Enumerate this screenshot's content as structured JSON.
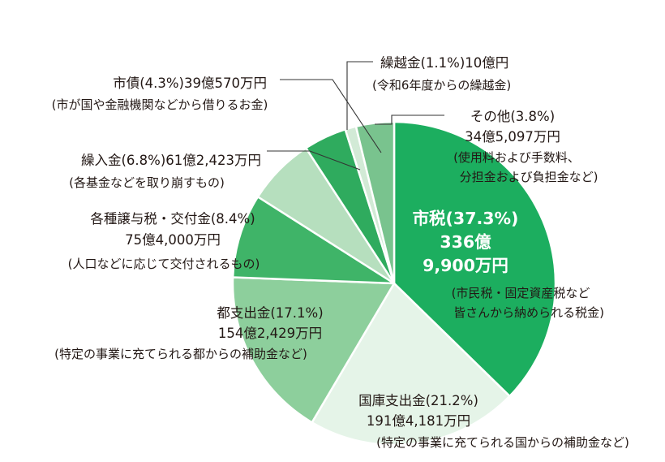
{
  "chart_data": {
    "type": "pie",
    "start_angle_deg": 0,
    "direction": "clockwise",
    "slices": [
      {
        "name": "市税",
        "percent_label": "(37.3%)",
        "value": 37.3,
        "amount": "336億9,900万円",
        "amount_lines": [
          "336億",
          "9,900万円"
        ],
        "note_lines": [
          "(市民税・固定資産税など",
          "皆さんから納められる税金)"
        ],
        "color": "#1cae5f"
      },
      {
        "name": "国庫支出金",
        "percent_label": "(21.2%)",
        "value": 21.2,
        "amount": "191億4,181万円",
        "note_lines": [
          "(特定の事業に充てられる国からの補助金など)"
        ],
        "color": "#e5f4e8"
      },
      {
        "name": "都支出金",
        "percent_label": "(17.1%)",
        "value": 17.1,
        "amount": "154億2,429万円",
        "note_lines": [
          "(特定の事業に充てられる都からの補助金など)"
        ],
        "color": "#8dcf9c"
      },
      {
        "name": "各種譲与税・交付金",
        "percent_label": "(8.4%)",
        "value": 8.4,
        "amount": "75億4,000万円",
        "note_lines": [
          "(人口などに応じて交付されるもの)"
        ],
        "color": "#3fb468"
      },
      {
        "name": "繰入金",
        "percent_label": "(6.8%)",
        "value": 6.8,
        "amount": "61億2,423万円",
        "note_lines": [
          "(各基金などを取り崩すもの)"
        ],
        "color": "#b6dfbe"
      },
      {
        "name": "市債",
        "percent_label": "(4.3%)",
        "value": 4.3,
        "amount": "39億570万円",
        "note_lines": [
          "(市が国や金融機関などから借りるお金)"
        ],
        "color": "#2fab5e"
      },
      {
        "name": "繰越金",
        "percent_label": "(1.1%)",
        "value": 1.1,
        "amount": "10億円",
        "note_lines": [
          "(令和6年度からの繰越金)"
        ],
        "color": "#d2ead6"
      },
      {
        "name": "その他",
        "percent_label": "(3.8%)",
        "value": 3.8,
        "amount": "34億5,097万円",
        "note_lines": [
          "(使用料および手数料、",
          "分担金および負担金など)"
        ],
        "color": "#79c38e"
      }
    ]
  }
}
